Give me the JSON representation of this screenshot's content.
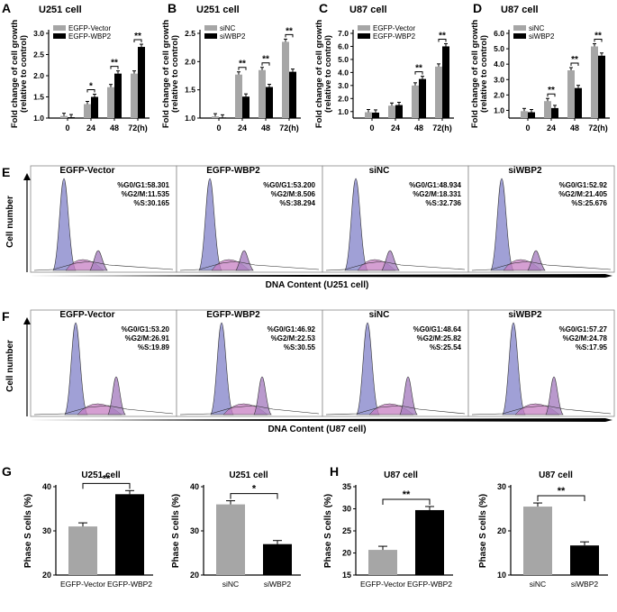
{
  "colors": {
    "grey": "#a6a6a6",
    "black": "#000000",
    "blue": "#8f8fcf",
    "pink": "#c77fc3",
    "magenta": "#b0479d",
    "violet": "#a87fc0",
    "border": "#888888"
  },
  "row1": [
    {
      "panel": "A",
      "title": "U251 cell",
      "type": "bar",
      "ylabel": "Fold change of cell growth\n(relative to control)",
      "ylim": [
        1.0,
        3.0
      ],
      "yticks": [
        "1.0",
        "1.5",
        "2.0",
        "2.5",
        "3.0"
      ],
      "ytickvals": [
        1.0,
        1.5,
        2.0,
        2.5,
        3.0
      ],
      "categories": [
        "0",
        "24",
        "48",
        "72(h)"
      ],
      "legend": [
        "EGFP-Vector",
        "EGFP-WBP2"
      ],
      "series": [
        {
          "name": "EGFP-Vector",
          "values": [
            1.05,
            1.33,
            1.73,
            2.05
          ]
        },
        {
          "name": "EGFP-WBP2",
          "values": [
            1.02,
            1.5,
            2.05,
            2.68
          ]
        }
      ],
      "sig": [
        {
          "cat": 1,
          "text": "*"
        },
        {
          "cat": 2,
          "text": "**"
        },
        {
          "cat": 3,
          "text": "**"
        }
      ]
    },
    {
      "panel": "B",
      "title": "U251 cell",
      "type": "bar",
      "ylabel": "Fold change of cell growth\n(relative to control)",
      "ylim": [
        1.0,
        2.5
      ],
      "yticks": [
        "1.0",
        "1.5",
        "2.0",
        "2.5"
      ],
      "ytickvals": [
        1.0,
        1.5,
        2.0,
        2.5
      ],
      "categories": [
        "0",
        "24",
        "48",
        "72(h)"
      ],
      "legend": [
        "siNC",
        "siWBP2"
      ],
      "series": [
        {
          "name": "siNC",
          "values": [
            1.03,
            1.77,
            1.85,
            2.35
          ]
        },
        {
          "name": "siWBP2",
          "values": [
            1.01,
            1.38,
            1.55,
            1.82
          ]
        }
      ],
      "sig": [
        {
          "cat": 1,
          "text": "**"
        },
        {
          "cat": 2,
          "text": "**"
        },
        {
          "cat": 3,
          "text": "**"
        }
      ]
    },
    {
      "panel": "C",
      "title": "U87 cell",
      "type": "bar",
      "ylabel": "Fold change of cell growth\n(relative to control)",
      "ylim": [
        0.5,
        7.0
      ],
      "yticks": [
        "1.0",
        "2.0",
        "3.0",
        "4.0",
        "5.0",
        "6.0",
        "7.0"
      ],
      "ytickvals": [
        1.0,
        2.0,
        3.0,
        4.0,
        5.0,
        6.0,
        7.0
      ],
      "categories": [
        "0",
        "24",
        "48",
        "72(h)"
      ],
      "legend": [
        "EGFP-Vector",
        "EGFP-WBP2"
      ],
      "series": [
        {
          "name": "EGFP-Vector",
          "values": [
            0.95,
            1.45,
            3.0,
            4.45
          ]
        },
        {
          "name": "EGFP-WBP2",
          "values": [
            0.92,
            1.5,
            3.5,
            6.0
          ]
        }
      ],
      "sig": [
        {
          "cat": 2,
          "text": "**"
        },
        {
          "cat": 3,
          "text": "**"
        }
      ]
    },
    {
      "panel": "D",
      "title": "U87 cell",
      "type": "bar",
      "ylabel": "Fold change of cell growth\n(relative to control)",
      "ylim": [
        0.5,
        6.0
      ],
      "yticks": [
        "1.0",
        "2.0",
        "3.0",
        "4.0",
        "5.0",
        "6.0"
      ],
      "ytickvals": [
        1.0,
        2.0,
        3.0,
        4.0,
        5.0,
        6.0
      ],
      "categories": [
        "0",
        "24",
        "48",
        "72(h)"
      ],
      "legend": [
        "siNC",
        "siWBP2"
      ],
      "series": [
        {
          "name": "siNC",
          "values": [
            0.95,
            1.6,
            3.6,
            5.15
          ]
        },
        {
          "name": "siWBP2",
          "values": [
            0.88,
            1.15,
            2.45,
            4.55
          ]
        }
      ],
      "sig": [
        {
          "cat": 1,
          "text": "**"
        },
        {
          "cat": 2,
          "text": "**"
        },
        {
          "cat": 3,
          "text": "**"
        }
      ]
    }
  ],
  "flow": [
    {
      "panel": "E",
      "ylabel": "Cell number",
      "xlabel": "DNA Content (U251 cell)",
      "samples": [
        {
          "name": "EGFP-Vector",
          "g0g1": "%G0/G1:58.301",
          "g2m": "%G2/M:11.535",
          "s": "%S:30.165"
        },
        {
          "name": "EGFP-WBP2",
          "g0g1": "%G0/G1:53.200",
          "g2m": "%G2/M:8.506",
          "s": "%S:38.294"
        },
        {
          "name": "siNC",
          "g0g1": "%G0/G1:48.934",
          "g2m": "%G2/M:18.331",
          "s": "%S:32.736"
        },
        {
          "name": "siWBP2",
          "g0g1": "%G0/G1:52.92",
          "g2m": "%G2/M:21.405",
          "s": "%S:25.676"
        }
      ]
    },
    {
      "panel": "F",
      "ylabel": "Cell number",
      "xlabel": "DNA Content (U87 cell)",
      "samples": [
        {
          "name": "EGFP-Vector",
          "g0g1": "%G0/G1:53.20",
          "g2m": "%G2/M:26.91",
          "s": "%S:19.89"
        },
        {
          "name": "EGFP-WBP2",
          "g0g1": "%G0/G1:46.92",
          "g2m": "%G2/M:22.53",
          "s": "%S:30.55"
        },
        {
          "name": "siNC",
          "g0g1": "%G0/G1:48.64",
          "g2m": "%G2/M:25.82",
          "s": "%S:25.54"
        },
        {
          "name": "siWBP2",
          "g0g1": "%G0/G1:57.27",
          "g2m": "%G2/M:24.78",
          "s": "%S:17.95"
        }
      ]
    }
  ],
  "row3": [
    {
      "panel": "G",
      "title": "U251 cell",
      "ylabel": "Phase S cells (%)",
      "ylim": [
        20,
        40
      ],
      "yticks": [
        "20",
        "30",
        "40"
      ],
      "ytickvals": [
        20,
        30,
        40
      ],
      "categories": [
        "EGFP-Vector",
        "EGFP-WBP2"
      ],
      "values": [
        31.0,
        38.3
      ],
      "sig": "**"
    },
    {
      "panel": "",
      "title": "U251 cell",
      "ylabel": "Phase S cells (%)",
      "ylim": [
        20,
        40
      ],
      "yticks": [
        "20",
        "30",
        "40"
      ],
      "ytickvals": [
        20,
        30,
        40
      ],
      "categories": [
        "siNC",
        "siWBP2"
      ],
      "values": [
        36.0,
        27.0
      ],
      "sig": "*"
    },
    {
      "panel": "H",
      "title": "U87 cell",
      "ylabel": "Phase S cells (%)",
      "ylim": [
        15,
        35
      ],
      "yticks": [
        "15",
        "20",
        "25",
        "30",
        "35"
      ],
      "ytickvals": [
        15,
        20,
        25,
        30,
        35
      ],
      "categories": [
        "EGFP-Vector",
        "EGFP-WBP2"
      ],
      "values": [
        20.7,
        29.7
      ],
      "sig": "**"
    },
    {
      "panel": "",
      "title": "U87 cell",
      "ylabel": "Phase S cells (%)",
      "ylim": [
        10,
        30
      ],
      "yticks": [
        "10",
        "20",
        "30"
      ],
      "ytickvals": [
        10,
        20,
        30
      ],
      "categories": [
        "siNC",
        "siWBP2"
      ],
      "values": [
        25.5,
        16.7
      ],
      "sig": "**"
    }
  ],
  "chart_data": [
    {
      "type": "bar",
      "panel": "A",
      "title": "U251 cell",
      "categories": [
        "0",
        "24",
        "48",
        "72(h)"
      ],
      "series": [
        {
          "name": "EGFP-Vector",
          "values": [
            1.05,
            1.33,
            1.73,
            2.05
          ]
        },
        {
          "name": "EGFP-WBP2",
          "values": [
            1.02,
            1.5,
            2.05,
            2.68
          ]
        }
      ],
      "ylabel": "Fold change of cell growth (relative to control)",
      "ylim": [
        1.0,
        3.0
      ]
    },
    {
      "type": "bar",
      "panel": "B",
      "title": "U251 cell",
      "categories": [
        "0",
        "24",
        "48",
        "72(h)"
      ],
      "series": [
        {
          "name": "siNC",
          "values": [
            1.03,
            1.77,
            1.85,
            2.35
          ]
        },
        {
          "name": "siWBP2",
          "values": [
            1.01,
            1.38,
            1.55,
            1.82
          ]
        }
      ],
      "ylabel": "Fold change of cell growth (relative to control)",
      "ylim": [
        1.0,
        2.5
      ]
    },
    {
      "type": "bar",
      "panel": "C",
      "title": "U87 cell",
      "categories": [
        "0",
        "24",
        "48",
        "72(h)"
      ],
      "series": [
        {
          "name": "EGFP-Vector",
          "values": [
            0.95,
            1.45,
            3.0,
            4.45
          ]
        },
        {
          "name": "EGFP-WBP2",
          "values": [
            0.92,
            1.5,
            3.5,
            6.0
          ]
        }
      ],
      "ylabel": "Fold change of cell growth (relative to control)",
      "ylim": [
        0.5,
        7.0
      ]
    },
    {
      "type": "bar",
      "panel": "D",
      "title": "U87 cell",
      "categories": [
        "0",
        "24",
        "48",
        "72(h)"
      ],
      "series": [
        {
          "name": "siNC",
          "values": [
            0.95,
            1.6,
            3.6,
            5.15
          ]
        },
        {
          "name": "siWBP2",
          "values": [
            0.88,
            1.15,
            2.45,
            4.55
          ]
        }
      ],
      "ylabel": "Fold change of cell growth (relative to control)",
      "ylim": [
        0.5,
        6.0
      ]
    },
    {
      "type": "bar",
      "panel": "G",
      "title": "U251 cell",
      "categories": [
        "EGFP-Vector",
        "EGFP-WBP2"
      ],
      "values": [
        31.0,
        38.3
      ],
      "ylabel": "Phase S cells (%)",
      "ylim": [
        20,
        40
      ]
    },
    {
      "type": "bar",
      "panel": "G2",
      "title": "U251 cell",
      "categories": [
        "siNC",
        "siWBP2"
      ],
      "values": [
        36.0,
        27.0
      ],
      "ylabel": "Phase S cells (%)",
      "ylim": [
        20,
        40
      ]
    },
    {
      "type": "bar",
      "panel": "H",
      "title": "U87 cell",
      "categories": [
        "EGFP-Vector",
        "EGFP-WBP2"
      ],
      "values": [
        20.7,
        29.7
      ],
      "ylabel": "Phase S cells (%)",
      "ylim": [
        15,
        35
      ]
    },
    {
      "type": "bar",
      "panel": "H2",
      "title": "U87 cell",
      "categories": [
        "siNC",
        "siWBP2"
      ],
      "values": [
        25.5,
        16.7
      ],
      "ylabel": "Phase S cells (%)",
      "ylim": [
        10,
        30
      ]
    }
  ]
}
